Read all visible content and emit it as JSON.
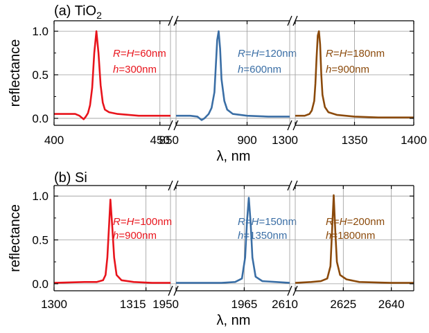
{
  "colors": {
    "red": "#e8141c",
    "blue": "#3a6ea5",
    "brown": "#8b4a0b",
    "grid": "#9a9a9a"
  },
  "chart_data": [
    {
      "panel_label": "(a) TiO",
      "panel_label_sub": "2",
      "type": "line",
      "ylabel": "reflectance",
      "xlabel": "λ, nm",
      "ylim": [
        -0.08,
        1.12
      ],
      "yticks": [
        "0.0",
        "0.5",
        "1.0"
      ],
      "grid": true,
      "segments": [
        {
          "xlim": [
            400,
            455
          ],
          "xticks": [
            400,
            450
          ],
          "grid_x": [
            450
          ],
          "color": "red",
          "annotation": [
            "R=H=60nm",
            "h=300nm"
          ],
          "peak": 420,
          "peak_value": 1.0,
          "x": [
            400,
            410,
            412,
            414,
            415,
            416,
            417,
            418,
            419,
            420,
            421,
            422,
            423,
            424,
            426,
            430,
            440,
            455
          ],
          "y": [
            0.05,
            0.05,
            0.03,
            -0.01,
            0.02,
            0.06,
            0.15,
            0.35,
            0.75,
            1.0,
            0.75,
            0.38,
            0.18,
            0.1,
            0.07,
            0.05,
            0.03,
            0.03
          ]
        },
        {
          "xlim": [
            850,
            930
          ],
          "xticks": [
            850,
            900
          ],
          "grid_x": [
            900
          ],
          "color": "blue",
          "annotation": [
            "R=H=120nm",
            "h=600nm"
          ],
          "peak": 880,
          "peak_value": 1.0,
          "x": [
            850,
            860,
            865,
            868,
            870,
            873,
            875,
            877,
            878,
            879,
            880,
            881,
            882,
            884,
            886,
            890,
            900,
            915,
            930
          ],
          "y": [
            0.03,
            0.03,
            0.02,
            -0.02,
            0.0,
            0.05,
            0.12,
            0.3,
            0.6,
            0.9,
            1.0,
            0.8,
            0.45,
            0.2,
            0.1,
            0.05,
            0.03,
            0.02,
            0.02
          ]
        },
        {
          "xlim": [
            1300,
            1400
          ],
          "xticks": [
            1300,
            1350,
            1400
          ],
          "grid_x": [
            1350
          ],
          "color": "brown",
          "annotation": [
            "R=H=180nm",
            "h=900nm"
          ],
          "peak": 1320,
          "peak_value": 1.0,
          "x": [
            1300,
            1308,
            1312,
            1314,
            1316,
            1317,
            1318,
            1319,
            1320,
            1321,
            1322,
            1323,
            1325,
            1328,
            1335,
            1350,
            1370,
            1400
          ],
          "y": [
            0.03,
            0.03,
            0.05,
            0.09,
            0.2,
            0.4,
            0.7,
            0.95,
            1.0,
            0.85,
            0.5,
            0.27,
            0.13,
            0.07,
            0.04,
            0.02,
            0.01,
            0.01
          ]
        }
      ]
    },
    {
      "panel_label": "(b) Si",
      "panel_label_sub": "",
      "type": "line",
      "ylabel": "reflectance",
      "xlabel": "λ, nm",
      "ylim": [
        -0.08,
        1.12
      ],
      "yticks": [
        "0.0",
        "0.5",
        "1.0"
      ],
      "grid": true,
      "segments": [
        {
          "xlim": [
            1300,
            1319
          ],
          "xticks": [
            1300,
            1315
          ],
          "grid_x": [
            1315
          ],
          "color": "red",
          "annotation": [
            "R=H=100nm",
            "h=900nm"
          ],
          "peak": 1309.2,
          "peak_value": 0.96,
          "x": [
            1300,
            1305,
            1307,
            1308,
            1308.4,
            1308.7,
            1309,
            1309.2,
            1309.5,
            1309.8,
            1310.2,
            1311,
            1313,
            1316,
            1319
          ],
          "y": [
            0.01,
            0.02,
            0.02,
            0.04,
            0.1,
            0.3,
            0.7,
            0.96,
            0.65,
            0.3,
            0.1,
            0.04,
            0.02,
            0.01,
            0.01
          ]
        },
        {
          "xlim": [
            1950,
            1975
          ],
          "xticks": [
            1950,
            1965
          ],
          "grid_x": [
            1965
          ],
          "color": "blue",
          "annotation": [
            "R=H=150nm",
            "h=1350nm"
          ],
          "peak": 1966,
          "peak_value": 0.98,
          "x": [
            1950,
            1955,
            1960,
            1963,
            1964.5,
            1965.2,
            1965.6,
            1966,
            1966.4,
            1966.8,
            1967.5,
            1969,
            1972,
            1975
          ],
          "y": [
            0.01,
            0.01,
            0.01,
            0.02,
            0.06,
            0.3,
            0.7,
            0.98,
            0.7,
            0.3,
            0.08,
            0.03,
            0.02,
            0.01
          ]
        },
        {
          "xlim": [
            2610,
            2647
          ],
          "xticks": [
            2610,
            2625,
            2640
          ],
          "grid_x": [
            2625,
            2640
          ],
          "color": "brown",
          "annotation": [
            "R=H=200nm",
            "h=1800nm"
          ],
          "peak": 2622,
          "peak_value": 1.01,
          "x": [
            2610,
            2615,
            2618,
            2620,
            2621,
            2621.5,
            2622,
            2622.5,
            2623,
            2624,
            2626,
            2630,
            2640,
            2647
          ],
          "y": [
            0.01,
            0.02,
            0.03,
            0.06,
            0.2,
            0.6,
            1.01,
            0.6,
            0.25,
            0.1,
            0.05,
            0.02,
            0.01,
            0.01
          ]
        }
      ]
    }
  ]
}
